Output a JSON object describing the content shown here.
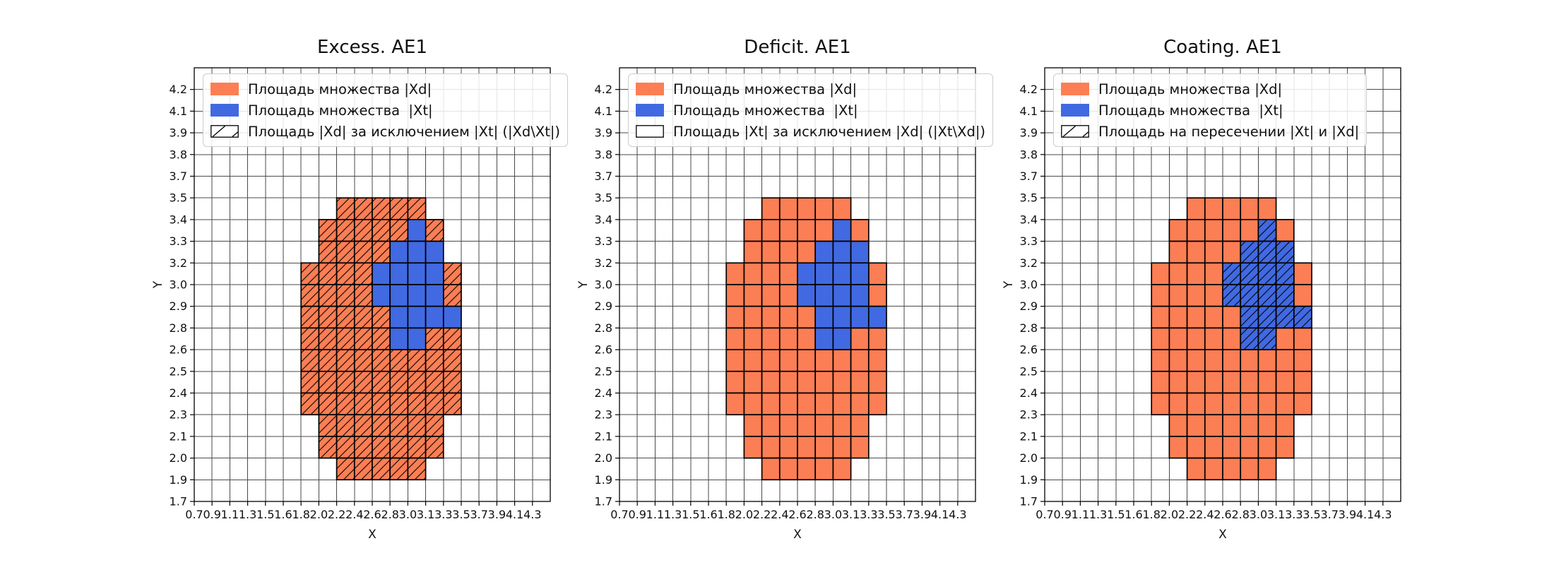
{
  "page": {
    "background": "#ffffff"
  },
  "colors": {
    "xd_fill": "#FC7E54",
    "xt_fill": "#4169E1",
    "cell_edge": "#000000",
    "mesh_line": "#4a4a4a",
    "spine": "#000000",
    "hatch_line": "#000000",
    "legend_border": "#cccccc",
    "legend_bg": "rgba(255,255,255,0.85)"
  },
  "chart_data": {
    "type": "heatmap",
    "x_axis_label": "X",
    "y_axis_label": "Y",
    "x_tick_labels": [
      "0.7",
      "0.9",
      "1.1",
      "1.3",
      "1.5",
      "1.6",
      "1.8",
      "2.0",
      "2.2",
      "2.4",
      "2.6",
      "2.8",
      "3.0",
      "3.1",
      "3.3",
      "3.5",
      "3.7",
      "3.9",
      "4.1",
      "4.3"
    ],
    "y_tick_labels_top_to_bottom": [
      "4.2",
      "4.1",
      "3.9",
      "3.8",
      "3.7",
      "3.5",
      "3.4",
      "3.3",
      "3.2",
      "3.0",
      "2.9",
      "2.8",
      "2.6",
      "2.5",
      "2.4",
      "2.3",
      "2.1",
      "2.0",
      "1.9",
      "1.7"
    ],
    "grid": {
      "cols": 20,
      "rows": 20,
      "row_index_0_is_top": true,
      "x_ticks_at_cell_boundaries": true
    },
    "xd_region_row_spans": [
      [
        6,
        8,
        12
      ],
      [
        7,
        7,
        13
      ],
      [
        8,
        7,
        13
      ],
      [
        9,
        6,
        14
      ],
      [
        10,
        6,
        14
      ],
      [
        11,
        6,
        14
      ],
      [
        12,
        6,
        14
      ],
      [
        13,
        6,
        14
      ],
      [
        14,
        6,
        14
      ],
      [
        15,
        6,
        14
      ],
      [
        16,
        7,
        13
      ],
      [
        17,
        7,
        13
      ],
      [
        18,
        8,
        12
      ]
    ],
    "xt_region_row_spans": [
      [
        7,
        12,
        12
      ],
      [
        8,
        11,
        13
      ],
      [
        9,
        10,
        13
      ],
      [
        10,
        10,
        13
      ],
      [
        11,
        11,
        14
      ],
      [
        12,
        11,
        12
      ]
    ],
    "xd_cell_count": 101,
    "xt_cell_count": 18,
    "subplots": [
      {
        "title": "Excess. AE1",
        "hatch_target": "xd_cells",
        "legend": [
          {
            "swatch": "xd",
            "label": "Площадь множества |Xd|"
          },
          {
            "swatch": "xt",
            "label": "Площадь множества  |Xt|"
          },
          {
            "swatch": "hatch",
            "label": "Площадь |Xd| за исключением |Xt| (|Xd\\Xt|)"
          }
        ]
      },
      {
        "title": "Deficit. AE1",
        "hatch_target": "none",
        "legend": [
          {
            "swatch": "xd",
            "label": "Площадь множества |Xd|"
          },
          {
            "swatch": "xt",
            "label": "Площадь множества  |Xt|"
          },
          {
            "swatch": "plain",
            "label": "Площадь |Xt| за исключением |Xd| (|Xt\\Xd|)"
          }
        ]
      },
      {
        "title": "Coating. AE1",
        "hatch_target": "xt_cells",
        "legend": [
          {
            "swatch": "xd",
            "label": "Площадь множества |Xd|"
          },
          {
            "swatch": "xt",
            "label": "Площадь множества  |Xt|"
          },
          {
            "swatch": "hatch",
            "label": "Площадь на пересечении |Xt| и |Xd|"
          }
        ]
      }
    ]
  }
}
